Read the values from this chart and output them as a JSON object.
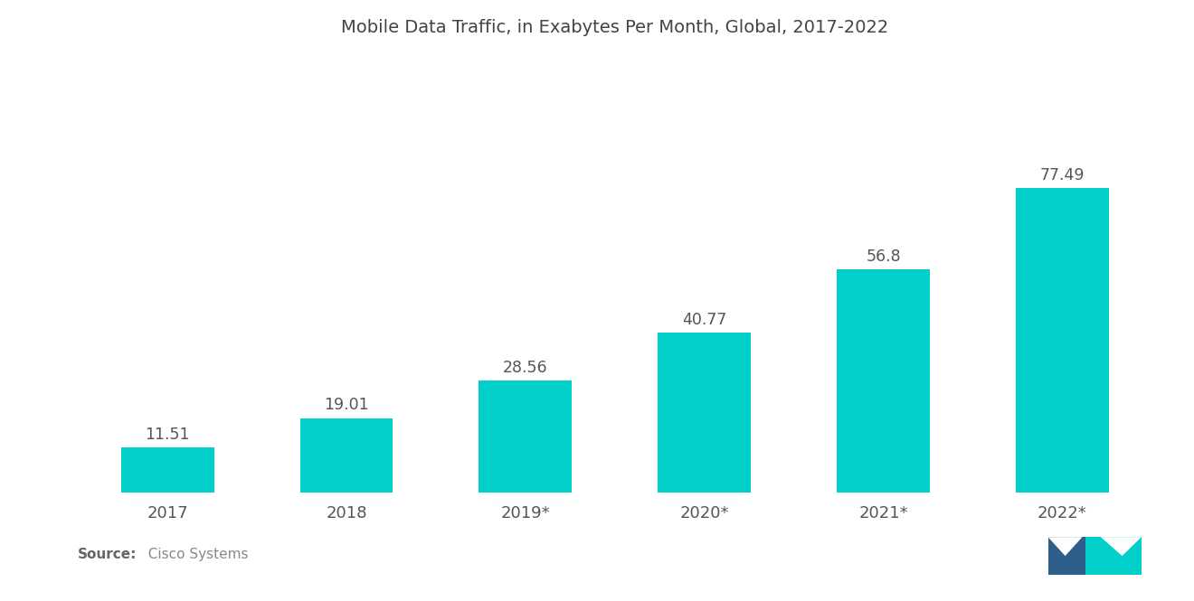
{
  "title": "Mobile Data Traffic, in Exabytes Per Month, Global, 2017-2022",
  "categories": [
    "2017",
    "2018",
    "2019*",
    "2020*",
    "2021*",
    "2022*"
  ],
  "values": [
    11.51,
    19.01,
    28.56,
    40.77,
    56.8,
    77.49
  ],
  "bar_color": "#00CFCA",
  "background_color": "#ffffff",
  "title_fontsize": 14,
  "label_fontsize": 12.5,
  "tick_fontsize": 13,
  "source_bold": "Source:",
  "source_normal": "  Cisco Systems",
  "ylim": [
    0,
    110
  ],
  "bar_width": 0.52,
  "logo_left_color": "#2E5F8A",
  "logo_right_color": "#00CFCA"
}
